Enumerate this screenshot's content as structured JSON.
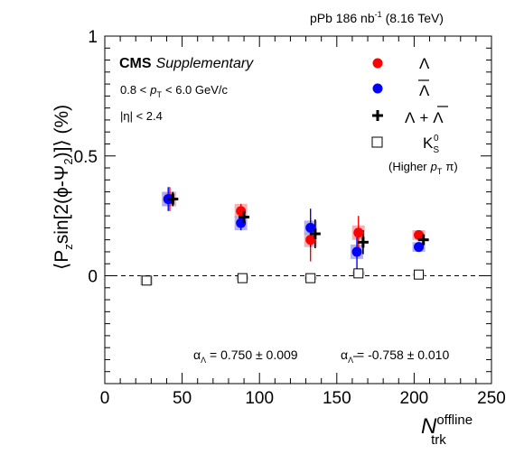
{
  "header": {
    "dataset": "pPb 186 nb",
    "dataset_sup": "-1",
    "energy": "(8.16 TeV)"
  },
  "labels": {
    "experiment": "CMS",
    "experiment_suffix": "Supplementary",
    "pt_low": "0.8 <",
    "pt_sym": "p",
    "pt_sub": "T",
    "pt_high": "< 6.0 GeV/c",
    "eta_range": "|η| < 2.4",
    "alpha_lambda_prefix": "α",
    "alpha_lambda_sub": "Λ",
    "alpha_lambda_value": " = 0.750 ± 0.009",
    "alpha_lambdabar_prefix": "α",
    "alpha_lambdabar_sub": "Λ",
    "alpha_lambdabar_value": " = -0.758 ± 0.010"
  },
  "legend": {
    "lambda": "Λ",
    "lambdabar": "Λ",
    "combined_a": "Λ",
    "combined_plus": "+",
    "combined_b": "Λ",
    "kshort": "K",
    "kshort_sub": "S",
    "kshort_sup": "0",
    "kshort_note": "(Higher",
    "kshort_note_p": "p",
    "kshort_note_sub": "T",
    "kshort_note_end": "π)"
  },
  "axes": {
    "x_title_main": "N",
    "x_title_sup": "offline",
    "x_title_sub": "trk",
    "y_title": "⟨P",
    "y_title_sub": "z",
    "y_title_mid": "sin[2(ϕ-Ψ",
    "y_title_sub2": "2",
    "y_title_end": ")]⟩ (%)"
  },
  "colors": {
    "lambda": "#ff0000",
    "lambda_band": "#f2a4a4",
    "lambdabar": "#0000ff",
    "lambdabar_band": "#a8a6e8",
    "combined": "#000000",
    "kshort_band": "#c8c8c8"
  },
  "chart_data": {
    "type": "scatter",
    "xlim": [
      0,
      250
    ],
    "ylim": [
      -0.45,
      1.0
    ],
    "x_ticks": [
      0,
      50,
      100,
      150,
      200,
      250
    ],
    "y_ticks": [
      0,
      0.5,
      1
    ],
    "x_tick_labels": [
      "0",
      "50",
      "100",
      "150",
      "200",
      "250"
    ],
    "y_tick_labels": [
      "0",
      "0.5",
      "1"
    ],
    "reference_line_y": 0,
    "series": [
      {
        "name": "Λ",
        "marker": "circle",
        "x": [
          42,
          88,
          133,
          164,
          203
        ],
        "y": [
          0.32,
          0.27,
          0.15,
          0.18,
          0.17
        ],
        "stat_err": [
          0.05,
          0.03,
          0.09,
          0.07,
          0.02
        ],
        "sys_err": [
          0.03,
          0.03,
          0.03,
          0.03,
          0.02
        ]
      },
      {
        "name": "Λ̄",
        "marker": "circle",
        "x": [
          41,
          88,
          133,
          163,
          203
        ],
        "y": [
          0.32,
          0.22,
          0.2,
          0.1,
          0.12
        ],
        "stat_err": [
          0.05,
          0.03,
          0.08,
          0.07,
          0.02
        ],
        "sys_err": [
          0.03,
          0.03,
          0.03,
          0.03,
          0.02
        ]
      },
      {
        "name": "Λ + Λ̄",
        "marker": "cross",
        "x": [
          44,
          90,
          136,
          167,
          206
        ],
        "y": [
          0.32,
          0.245,
          0.175,
          0.14,
          0.15
        ],
        "stat_err": [
          0.03,
          0.02,
          0.06,
          0.05,
          0.015
        ]
      },
      {
        "name": "K⁰_S (Higher p_T π)",
        "marker": "open-square",
        "x": [
          27,
          89,
          133,
          164,
          203
        ],
        "y": [
          -0.02,
          -0.01,
          -0.01,
          0.01,
          0.005
        ],
        "sys_err": [
          0.02,
          0.008,
          0.006,
          0.008,
          0.006
        ]
      }
    ]
  }
}
